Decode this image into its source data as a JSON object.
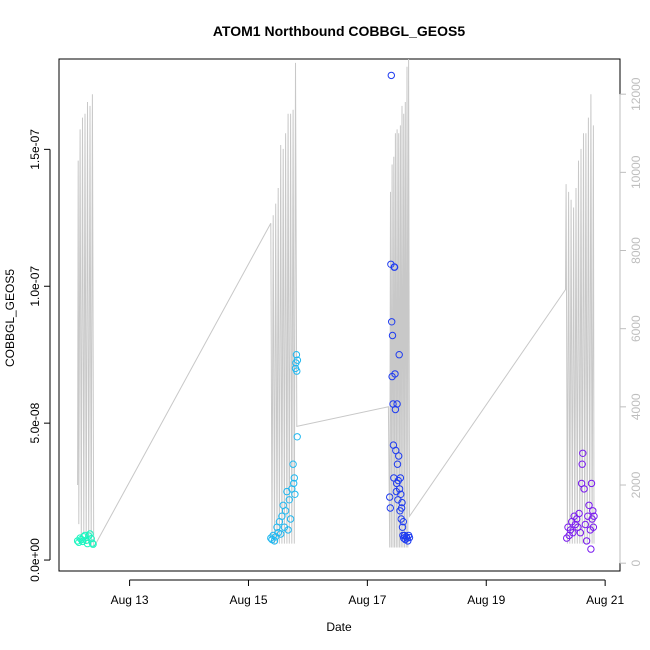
{
  "chart_data": {
    "type": "scatter",
    "title": "ATOM1 Northbound COBBGL_GEOS5",
    "xlabel": "Date",
    "ylabel": "COBBGL_GEOS5",
    "xlim": [
      "2016-08-11T19:30",
      "2016-08-21T06:00"
    ],
    "ylim": [
      -4e-09,
      1.83e-07
    ],
    "xticks": [
      {
        "date": "2016-08-13",
        "label": "Aug 13"
      },
      {
        "date": "2016-08-15",
        "label": "Aug 15"
      },
      {
        "date": "2016-08-17",
        "label": "Aug 17"
      },
      {
        "date": "2016-08-19",
        "label": "Aug 19"
      },
      {
        "date": "2016-08-21",
        "label": "Aug 21"
      }
    ],
    "yticks": [
      {
        "value": 0,
        "label": "0.0e+00"
      },
      {
        "value": 5e-08,
        "label": "5.0e-08"
      },
      {
        "value": 1e-07,
        "label": "1.0e-07"
      },
      {
        "value": 1.5e-07,
        "label": "1.5e-07"
      }
    ],
    "y2_axis": {
      "lim": [
        -200,
        12900
      ],
      "ticks": [
        0,
        2000,
        4000,
        6000,
        8000,
        10000,
        12000
      ],
      "color": "#bebebe"
    },
    "grid": false,
    "legend": "none",
    "series": [
      {
        "type": "scatter",
        "color": "#1CF5C0",
        "points": [
          [
            "2016-08-12T03:00",
            7e-09
          ],
          [
            "2016-08-12T03:30",
            6.5e-09
          ],
          [
            "2016-08-12T04:00",
            8e-09
          ],
          [
            "2016-08-12T04:30",
            7.5e-09
          ],
          [
            "2016-08-12T05:00",
            6.8e-09
          ],
          [
            "2016-08-12T05:30",
            8.5e-09
          ],
          [
            "2016-08-12T06:00",
            9e-09
          ],
          [
            "2016-08-12T06:30",
            7.2e-09
          ],
          [
            "2016-08-12T07:00",
            6e-09
          ],
          [
            "2016-08-12T07:30",
            8.8e-09
          ],
          [
            "2016-08-12T08:00",
            9.5e-09
          ],
          [
            "2016-08-12T08:30",
            7.8e-09
          ],
          [
            "2016-08-12T09:00",
            6.2e-09
          ],
          [
            "2016-08-12T09:15",
            5.8e-09
          ]
        ]
      },
      {
        "type": "scatter",
        "color": "#20B8F0",
        "points": [
          [
            "2016-08-15T09:00",
            8e-09
          ],
          [
            "2016-08-15T09:30",
            7.5e-09
          ],
          [
            "2016-08-15T10:00",
            9e-09
          ],
          [
            "2016-08-15T10:30",
            7e-09
          ],
          [
            "2016-08-15T11:00",
            8.5e-09
          ],
          [
            "2016-08-15T11:30",
            1.2e-08
          ],
          [
            "2016-08-15T12:00",
            1e-08
          ],
          [
            "2016-08-15T12:30",
            1.4e-08
          ],
          [
            "2016-08-15T13:00",
            9.5e-09
          ],
          [
            "2016-08-15T13:30",
            1.6e-08
          ],
          [
            "2016-08-15T14:00",
            2e-08
          ],
          [
            "2016-08-15T14:30",
            1.2e-08
          ],
          [
            "2016-08-15T15:00",
            1.8e-08
          ],
          [
            "2016-08-15T15:30",
            2.5e-08
          ],
          [
            "2016-08-15T16:00",
            1.1e-08
          ],
          [
            "2016-08-15T16:30",
            2.2e-08
          ],
          [
            "2016-08-15T17:00",
            1.5e-08
          ],
          [
            "2016-08-15T17:30",
            2.6e-08
          ],
          [
            "2016-08-15T18:00",
            3.5e-08
          ],
          [
            "2016-08-15T18:15",
            2.8e-08
          ],
          [
            "2016-08-15T18:30",
            3e-08
          ],
          [
            "2016-08-15T18:45",
            2.4e-08
          ],
          [
            "2016-08-15T19:00",
            7e-08
          ],
          [
            "2016-08-15T19:10",
            7.2e-08
          ],
          [
            "2016-08-15T19:20",
            7.5e-08
          ],
          [
            "2016-08-15T19:30",
            6.9e-08
          ],
          [
            "2016-08-15T19:40",
            4.5e-08
          ],
          [
            "2016-08-15T19:45",
            7.3e-08
          ]
        ]
      },
      {
        "type": "scatter",
        "color": "#1F3CF0",
        "points": [
          [
            "2016-08-17T09:00",
            2.3e-08
          ],
          [
            "2016-08-17T09:15",
            1.9e-08
          ],
          [
            "2016-08-17T09:30",
            1.08e-07
          ],
          [
            "2016-08-17T09:40",
            1.77e-07
          ],
          [
            "2016-08-17T09:50",
            8.7e-08
          ],
          [
            "2016-08-17T10:00",
            6.7e-08
          ],
          [
            "2016-08-17T10:10",
            8.2e-08
          ],
          [
            "2016-08-17T10:20",
            5.7e-08
          ],
          [
            "2016-08-17T10:30",
            4.2e-08
          ],
          [
            "2016-08-17T10:40",
            3e-08
          ],
          [
            "2016-08-17T10:50",
            1.07e-07
          ],
          [
            "2016-08-17T11:00",
            1.07e-07
          ],
          [
            "2016-08-17T11:10",
            6.8e-08
          ],
          [
            "2016-08-17T11:20",
            5.5e-08
          ],
          [
            "2016-08-17T11:30",
            4e-08
          ],
          [
            "2016-08-17T11:40",
            2.5e-08
          ],
          [
            "2016-08-17T11:50",
            2.8e-08
          ],
          [
            "2016-08-17T12:00",
            5.7e-08
          ],
          [
            "2016-08-17T12:10",
            3.5e-08
          ],
          [
            "2016-08-17T12:20",
            2.2e-08
          ],
          [
            "2016-08-17T12:30",
            2.9e-08
          ],
          [
            "2016-08-17T12:40",
            3.8e-08
          ],
          [
            "2016-08-17T12:50",
            7.5e-08
          ],
          [
            "2016-08-17T13:00",
            2.6e-08
          ],
          [
            "2016-08-17T13:10",
            1.8e-08
          ],
          [
            "2016-08-17T13:20",
            3e-08
          ],
          [
            "2016-08-17T13:30",
            2.4e-08
          ],
          [
            "2016-08-17T13:40",
            1.5e-08
          ],
          [
            "2016-08-17T13:50",
            1.9e-08
          ],
          [
            "2016-08-17T14:00",
            2.1e-08
          ],
          [
            "2016-08-17T14:10",
            1.2e-08
          ],
          [
            "2016-08-17T14:20",
            9e-09
          ],
          [
            "2016-08-17T14:30",
            1.4e-08
          ],
          [
            "2016-08-17T14:40",
            8e-09
          ],
          [
            "2016-08-17T15:00",
            9e-09
          ],
          [
            "2016-08-17T15:20",
            7.5e-09
          ],
          [
            "2016-08-17T15:40",
            8.5e-09
          ],
          [
            "2016-08-17T16:00",
            8e-09
          ],
          [
            "2016-08-17T16:20",
            7e-09
          ],
          [
            "2016-08-17T16:40",
            9e-09
          ],
          [
            "2016-08-17T17:00",
            8.2e-09
          ]
        ]
      },
      {
        "type": "scatter",
        "color": "#7A1BF0",
        "points": [
          [
            "2016-08-20T08:30",
            8e-09
          ],
          [
            "2016-08-20T09:00",
            1.2e-08
          ],
          [
            "2016-08-20T09:30",
            9e-09
          ],
          [
            "2016-08-20T10:00",
            1.1e-08
          ],
          [
            "2016-08-20T10:30",
            1.4e-08
          ],
          [
            "2016-08-20T11:00",
            1e-08
          ],
          [
            "2016-08-20T11:30",
            1.6e-08
          ],
          [
            "2016-08-20T12:00",
            1.3e-08
          ],
          [
            "2016-08-20T12:30",
            1.5e-08
          ],
          [
            "2016-08-20T13:00",
            1.2e-08
          ],
          [
            "2016-08-20T13:30",
            1.7e-08
          ],
          [
            "2016-08-20T14:00",
            1e-08
          ],
          [
            "2016-08-20T14:30",
            2.8e-08
          ],
          [
            "2016-08-20T14:45",
            3.5e-08
          ],
          [
            "2016-08-20T15:00",
            3.9e-08
          ],
          [
            "2016-08-20T15:30",
            2.6e-08
          ],
          [
            "2016-08-20T16:00",
            1.3e-08
          ],
          [
            "2016-08-20T16:30",
            7e-09
          ],
          [
            "2016-08-20T17:00",
            1.6e-08
          ],
          [
            "2016-08-20T17:30",
            2e-08
          ],
          [
            "2016-08-20T18:00",
            1.1e-08
          ],
          [
            "2016-08-20T18:15",
            4e-09
          ],
          [
            "2016-08-20T18:30",
            2.8e-08
          ],
          [
            "2016-08-20T18:45",
            1.5e-08
          ],
          [
            "2016-08-20T19:00",
            1.8e-08
          ],
          [
            "2016-08-20T19:15",
            1.2e-08
          ],
          [
            "2016-08-20T19:30",
            1.6e-08
          ]
        ]
      }
    ],
    "secondary_series": {
      "type": "line",
      "axis": "y2",
      "color": "#c8c8c8",
      "points": [
        [
          "2016-08-12T03:00",
          2000
        ],
        [
          "2016-08-12T03:15",
          10300
        ],
        [
          "2016-08-12T03:30",
          1000
        ],
        [
          "2016-08-12T04:00",
          11100
        ],
        [
          "2016-08-12T04:30",
          600
        ],
        [
          "2016-08-12T05:00",
          11400
        ],
        [
          "2016-08-12T05:30",
          800
        ],
        [
          "2016-08-12T06:00",
          11500
        ],
        [
          "2016-08-12T06:30",
          500
        ],
        [
          "2016-08-12T07:00",
          11800
        ],
        [
          "2016-08-12T07:30",
          500
        ],
        [
          "2016-08-12T08:00",
          11700
        ],
        [
          "2016-08-12T08:30",
          400
        ],
        [
          "2016-08-12T09:00",
          12000
        ],
        [
          "2016-08-12T09:30",
          400
        ],
        [
          "2016-08-15T09:00",
          8700
        ],
        [
          "2016-08-15T09:30",
          500
        ],
        [
          "2016-08-15T10:00",
          8900
        ],
        [
          "2016-08-15T10:30",
          500
        ],
        [
          "2016-08-15T11:00",
          9200
        ],
        [
          "2016-08-15T11:30",
          500
        ],
        [
          "2016-08-15T12:00",
          9600
        ],
        [
          "2016-08-15T12:30",
          500
        ],
        [
          "2016-08-15T13:00",
          10700
        ],
        [
          "2016-08-15T13:30",
          500
        ],
        [
          "2016-08-15T14:00",
          10600
        ],
        [
          "2016-08-15T14:30",
          500
        ],
        [
          "2016-08-15T15:00",
          11000
        ],
        [
          "2016-08-15T15:30",
          500
        ],
        [
          "2016-08-15T16:00",
          11500
        ],
        [
          "2016-08-15T16:30",
          500
        ],
        [
          "2016-08-15T17:00",
          11500
        ],
        [
          "2016-08-15T17:30",
          500
        ],
        [
          "2016-08-15T18:00",
          11600
        ],
        [
          "2016-08-15T18:30",
          500
        ],
        [
          "2016-08-15T19:00",
          12800
        ],
        [
          "2016-08-15T19:30",
          3500
        ],
        [
          "2016-08-17T08:30",
          4000
        ],
        [
          "2016-08-17T09:00",
          400
        ],
        [
          "2016-08-17T09:20",
          9500
        ],
        [
          "2016-08-17T09:40",
          400
        ],
        [
          "2016-08-17T10:00",
          10200
        ],
        [
          "2016-08-17T10:20",
          400
        ],
        [
          "2016-08-17T10:40",
          10400
        ],
        [
          "2016-08-17T11:00",
          400
        ],
        [
          "2016-08-17T11:20",
          11000
        ],
        [
          "2016-08-17T11:40",
          400
        ],
        [
          "2016-08-17T12:00",
          11100
        ],
        [
          "2016-08-17T12:20",
          400
        ],
        [
          "2016-08-17T12:40",
          11000
        ],
        [
          "2016-08-17T13:00",
          400
        ],
        [
          "2016-08-17T13:20",
          11200
        ],
        [
          "2016-08-17T13:40",
          400
        ],
        [
          "2016-08-17T14:00",
          11700
        ],
        [
          "2016-08-17T14:20",
          400
        ],
        [
          "2016-08-17T14:40",
          11500
        ],
        [
          "2016-08-17T15:00",
          400
        ],
        [
          "2016-08-17T15:20",
          11800
        ],
        [
          "2016-08-17T15:40",
          400
        ],
        [
          "2016-08-17T16:00",
          12700
        ],
        [
          "2016-08-17T16:20",
          400
        ],
        [
          "2016-08-17T16:40",
          12900
        ],
        [
          "2016-08-17T17:00",
          1200
        ],
        [
          "2016-08-20T08:00",
          7000
        ],
        [
          "2016-08-20T08:15",
          9700
        ],
        [
          "2016-08-20T08:45",
          500
        ],
        [
          "2016-08-20T09:15",
          9500
        ],
        [
          "2016-08-20T09:45",
          500
        ],
        [
          "2016-08-20T10:15",
          9300
        ],
        [
          "2016-08-20T10:45",
          500
        ],
        [
          "2016-08-20T11:15",
          9100
        ],
        [
          "2016-08-20T11:45",
          500
        ],
        [
          "2016-08-20T12:15",
          9600
        ],
        [
          "2016-08-20T12:45",
          500
        ],
        [
          "2016-08-20T13:15",
          10300
        ],
        [
          "2016-08-20T13:45",
          500
        ],
        [
          "2016-08-20T14:15",
          10600
        ],
        [
          "2016-08-20T14:45",
          500
        ],
        [
          "2016-08-20T15:15",
          11000
        ],
        [
          "2016-08-20T15:45",
          500
        ],
        [
          "2016-08-20T16:15",
          11000
        ],
        [
          "2016-08-20T16:45",
          500
        ],
        [
          "2016-08-20T17:15",
          11400
        ],
        [
          "2016-08-20T17:45",
          500
        ],
        [
          "2016-08-20T18:15",
          12000
        ],
        [
          "2016-08-20T18:45",
          500
        ],
        [
          "2016-08-20T19:15",
          11200
        ],
        [
          "2016-08-20T19:30",
          500
        ]
      ]
    }
  }
}
